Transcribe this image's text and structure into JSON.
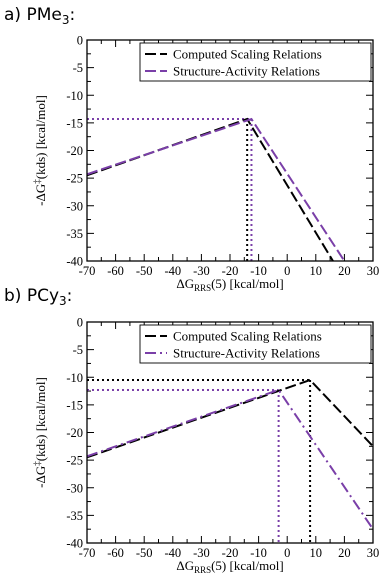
{
  "colors": {
    "computed": "#000000",
    "structure": "#7a3fa8"
  },
  "chart_data": [
    {
      "type": "line",
      "panel_label": "a) PMe",
      "panel_label_sub": "3",
      "panel_label_suffix": ":",
      "xlabel": "ΔG",
      "xlabel_sub": "RRS",
      "xlabel_suffix": "(5) [kcal/mol]",
      "ylabel": "-ΔG",
      "ylabel_sup": "‡",
      "ylabel_suffix": "(kds) [kcal/mol]",
      "xlim": [
        -70,
        30
      ],
      "ylim": [
        -40,
        0
      ],
      "xticks": [
        -70,
        -60,
        -50,
        -40,
        -30,
        -20,
        -10,
        0,
        10,
        20,
        30
      ],
      "yticks": [
        0,
        -5,
        -10,
        -15,
        -20,
        -25,
        -30,
        -35,
        -40
      ],
      "legend_position": "top-right",
      "series": [
        {
          "name": "Computed Scaling Relations",
          "color": "#000000",
          "dash": "dash",
          "x": [
            -70,
            -14,
            16
          ],
          "y": [
            -24.5,
            -14.3,
            -40
          ],
          "guide": {
            "x": -14,
            "y": -14.3
          }
        },
        {
          "name": "Structure-Activity Relations",
          "color": "#7a3fa8",
          "dash": "dash",
          "x": [
            -70,
            -12.5,
            20
          ],
          "y": [
            -24.3,
            -14.3,
            -40
          ],
          "guide": {
            "x": -12.5,
            "y": -14.3
          }
        }
      ]
    },
    {
      "type": "line",
      "panel_label": "b) PCy",
      "panel_label_sub": "3",
      "panel_label_suffix": ":",
      "xlabel": "ΔG",
      "xlabel_sub": "RRS",
      "xlabel_suffix": "(5) [kcal/mol]",
      "ylabel": "-ΔG",
      "ylabel_sup": "‡",
      "ylabel_suffix": "(kds) [kcal/mol]",
      "xlim": [
        -70,
        30
      ],
      "ylim": [
        -40,
        0
      ],
      "xticks": [
        -70,
        -60,
        -50,
        -40,
        -30,
        -20,
        -10,
        0,
        10,
        20,
        30
      ],
      "yticks": [
        0,
        -5,
        -10,
        -15,
        -20,
        -25,
        -30,
        -35,
        -40
      ],
      "legend_position": "top-right",
      "series": [
        {
          "name": "Computed Scaling Relations",
          "color": "#000000",
          "dash": "dash",
          "x": [
            -70,
            8,
            30
          ],
          "y": [
            -24.5,
            -10.5,
            -22.5
          ],
          "guide": {
            "x": 8,
            "y": -10.5
          }
        },
        {
          "name": "Structure-Activity Relations",
          "color": "#7a3fa8",
          "dash": "dashdot",
          "x": [
            -70,
            -3,
            30
          ],
          "y": [
            -24.3,
            -12.3,
            -37.5
          ],
          "guide": {
            "x": -3,
            "y": -12.3
          }
        }
      ]
    }
  ]
}
